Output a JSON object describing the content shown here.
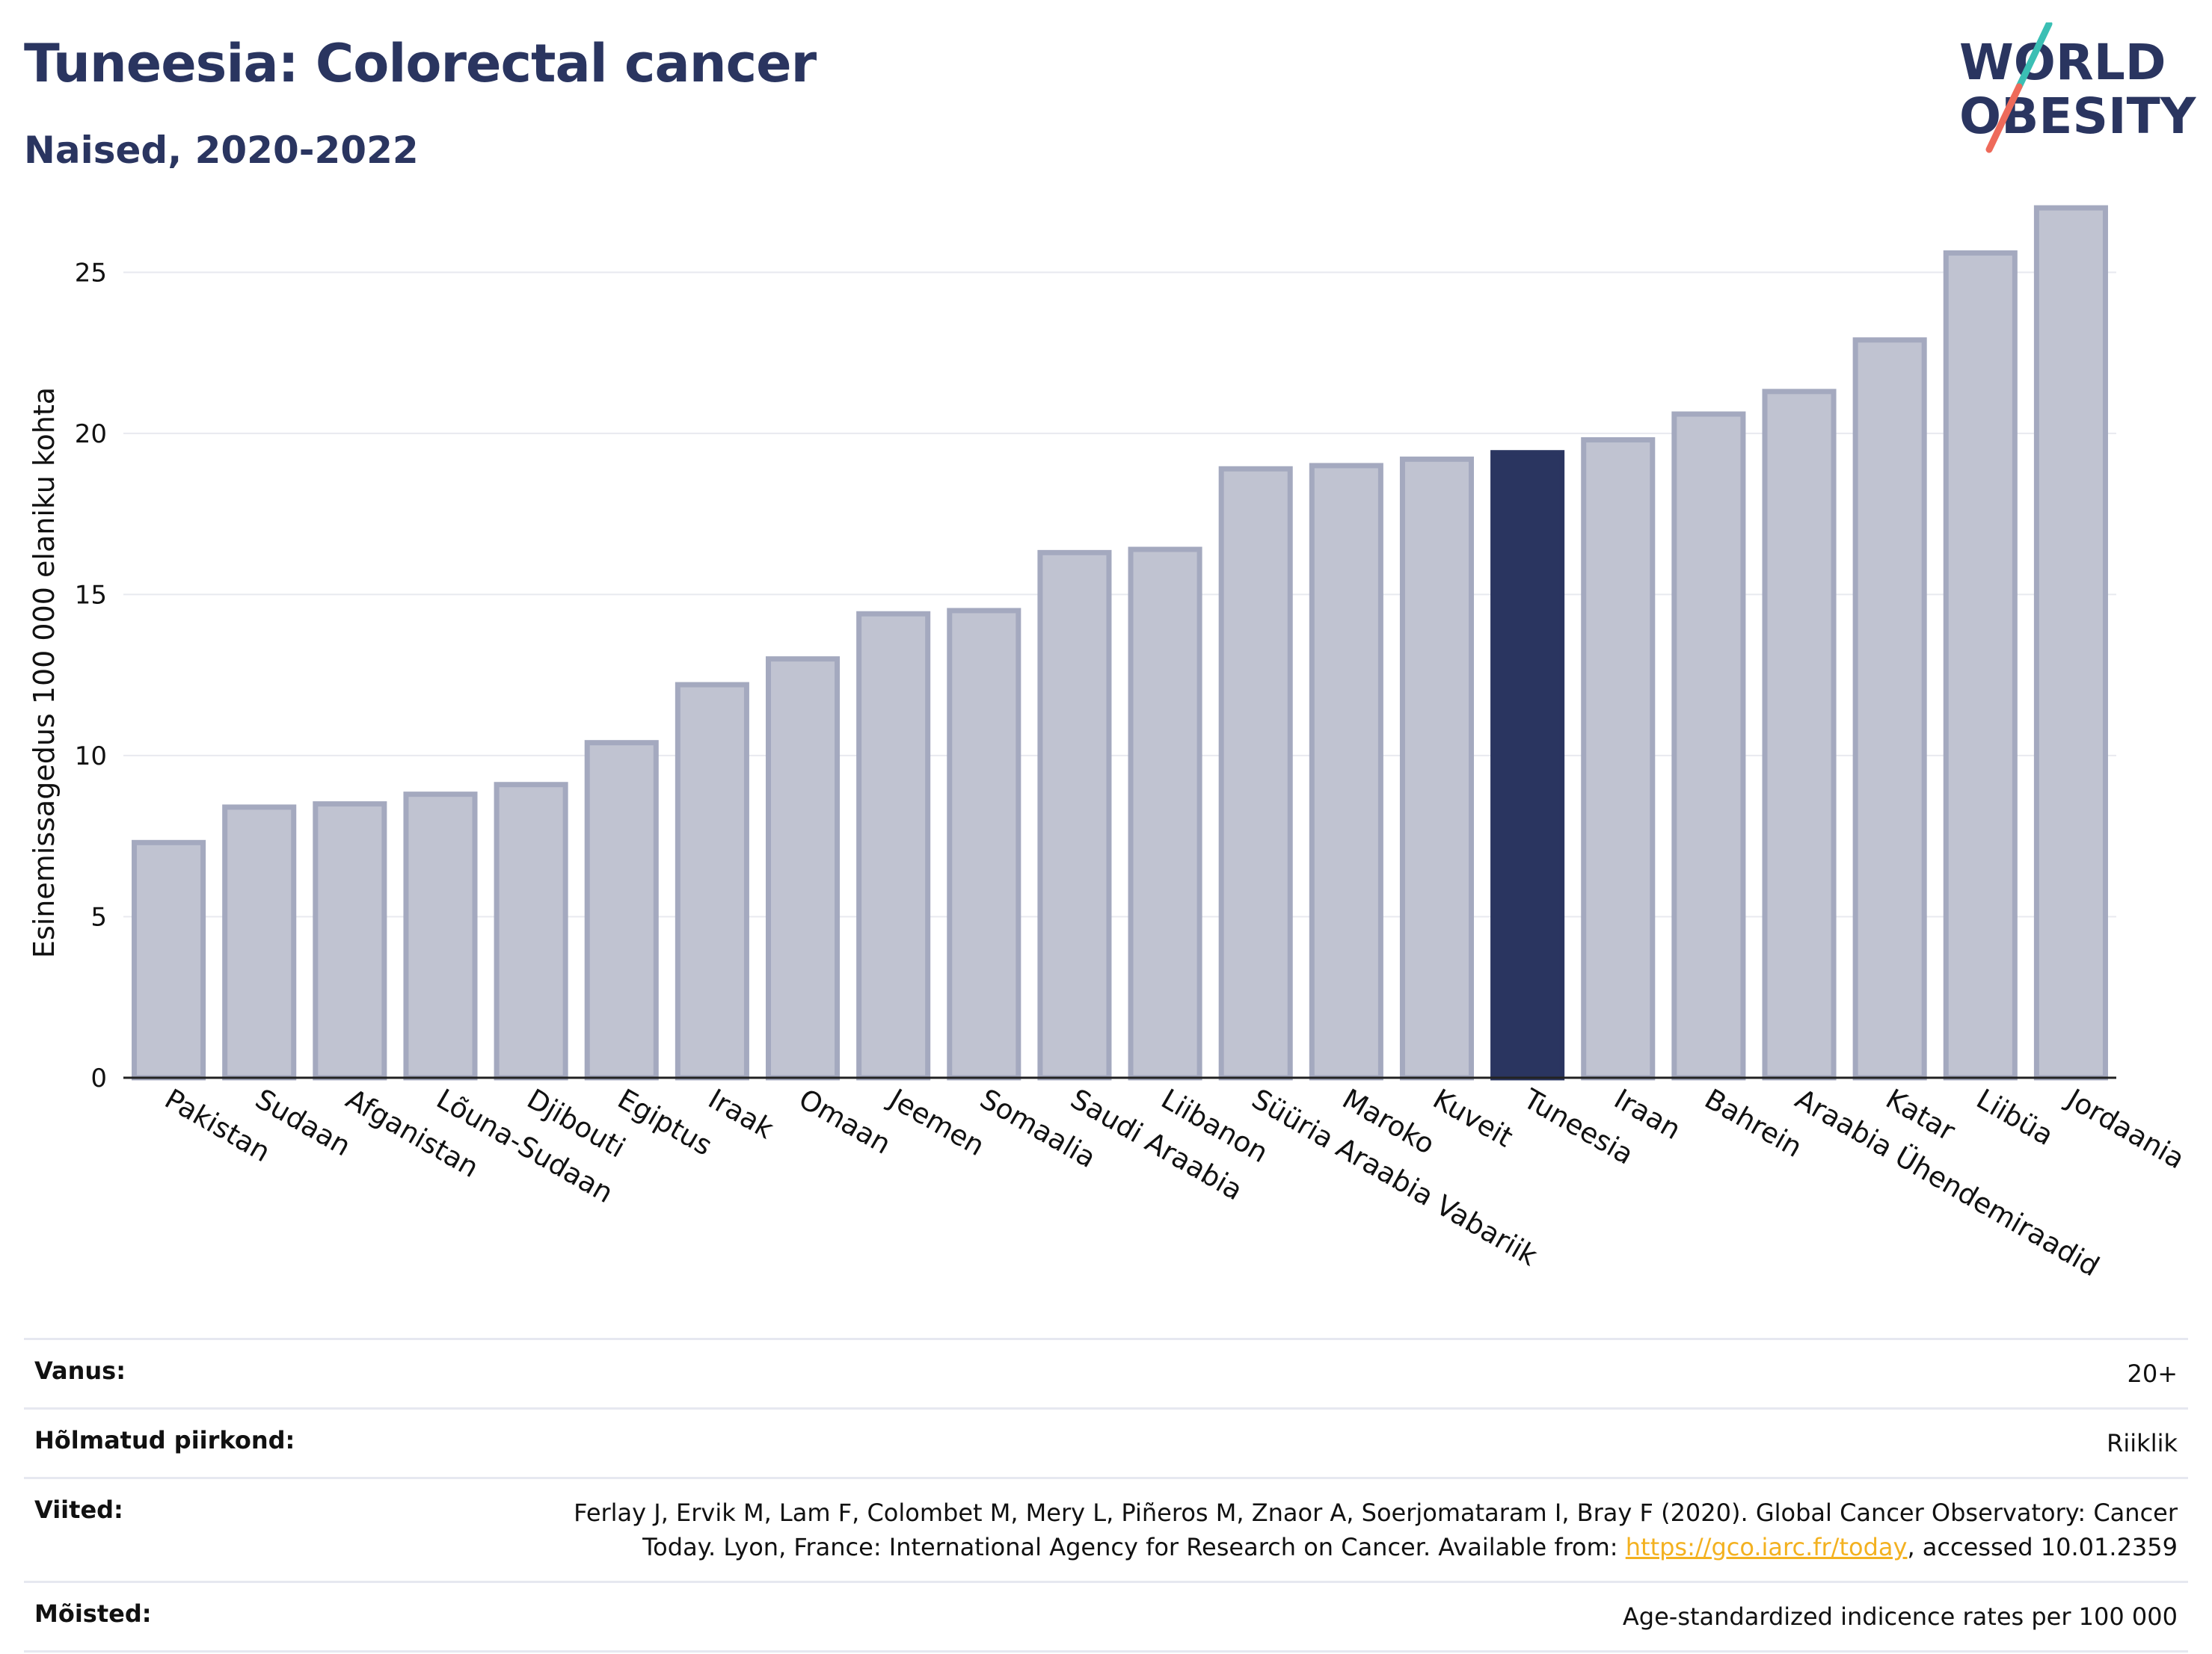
{
  "header": {
    "title": "Tuneesia: Colorectal cancer",
    "subtitle": "Naised, 2020-2022"
  },
  "logo": {
    "line1": "WORLD",
    "line2": "OBESITY",
    "colors": {
      "text": "#2a3560",
      "slash_top": "#3bbfb4",
      "slash_bottom": "#ee6a5a"
    }
  },
  "chart_data": {
    "type": "bar",
    "ylabel": "Esinemissagedus 100 000 elaniku kohta",
    "xlabel": "",
    "ylim": [
      0,
      28
    ],
    "yticks": [
      0,
      5,
      10,
      15,
      20,
      25
    ],
    "categories": [
      "Pakistan",
      "Sudaan",
      "Afganistan",
      "Lõuna-Sudaan",
      "Djibouti",
      "Egiptus",
      "Iraak",
      "Omaan",
      "Jeemen",
      "Somaalia",
      "Saudi Araabia",
      "Liibanon",
      "Süüria Araabia Vabariik",
      "Maroko",
      "Kuveit",
      "Tuneesia",
      "Iraan",
      "Bahrein",
      "Araabia Ühendemiraadid",
      "Katar",
      "Liibüa",
      "Jordaania"
    ],
    "values": [
      7.3,
      8.4,
      8.5,
      8.8,
      9.1,
      10.4,
      12.2,
      13.0,
      14.4,
      14.5,
      16.3,
      16.4,
      18.9,
      19.0,
      19.2,
      19.4,
      19.8,
      20.6,
      21.3,
      22.9,
      25.6,
      27.0
    ],
    "highlight": "Tuneesia",
    "grid": true,
    "colors": {
      "bar": "#c0c3d1",
      "bar_edge": "#a4a9bf",
      "highlight": "#2a3560",
      "grid": "#e8e9ef"
    }
  },
  "info": {
    "rows": [
      {
        "label": "Vanus:",
        "value": "20+"
      },
      {
        "label": "Hõlmatud piirkond:",
        "value": "Riiklik"
      },
      {
        "label": "Viited:",
        "value": "Ferlay J, Ervik M, Lam F, Colombet M, Mery L, Piñeros M, Znaor A, Soerjomataram I, Bray F (2020). Global Cancer Observatory: Cancer Today. Lyon, France: International Agency for Research on Cancer. Available from: ",
        "link": "https://gco.iarc.fr/today",
        "value_after": ", accessed 10.01.2359"
      },
      {
        "label": "Mõisted:",
        "value": "Age-standardized indicence rates per 100 000"
      }
    ]
  }
}
